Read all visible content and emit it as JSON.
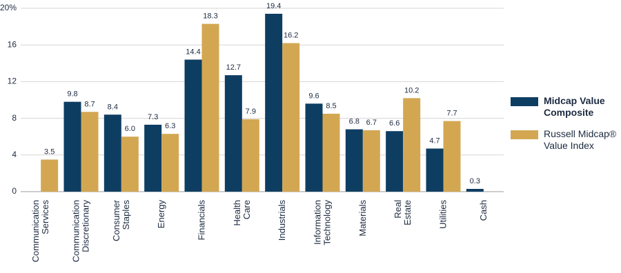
{
  "chart_data": {
    "type": "bar",
    "categories": [
      [
        "Communication",
        "Services"
      ],
      [
        "Communication",
        "Discretionary"
      ],
      [
        "Consumer",
        "Staples"
      ],
      [
        "Energy"
      ],
      [
        "Financials"
      ],
      [
        "Health",
        "Care"
      ],
      [
        "Industrials"
      ],
      [
        "Information",
        "Technology"
      ],
      [
        "Materials"
      ],
      [
        "Real",
        "Estate"
      ],
      [
        "Utilities"
      ],
      [
        "Cash"
      ]
    ],
    "series": [
      {
        "name": "Midcap Value Composite",
        "color": "#0e3d62",
        "values": [
          null,
          9.8,
          8.4,
          7.3,
          14.4,
          12.7,
          19.4,
          9.6,
          6.8,
          6.6,
          4.7,
          0.3
        ]
      },
      {
        "name": "Russell Midcap® Value Index",
        "color": "#d3a752",
        "values": [
          3.5,
          8.7,
          6.0,
          6.3,
          18.3,
          7.9,
          16.2,
          8.5,
          6.7,
          10.2,
          7.7,
          null
        ],
        "value_labels": [
          "3.5",
          "8.7",
          "6.0",
          "6.3",
          "18.3",
          "7.9",
          "16.2",
          "8.5",
          "6.7",
          "10.2",
          "7.7",
          null
        ]
      }
    ],
    "ylim": [
      0,
      20
    ],
    "yticks": [
      0,
      4,
      8,
      12,
      16,
      {
        "value": 20,
        "label": "20%"
      }
    ],
    "grid": true
  }
}
